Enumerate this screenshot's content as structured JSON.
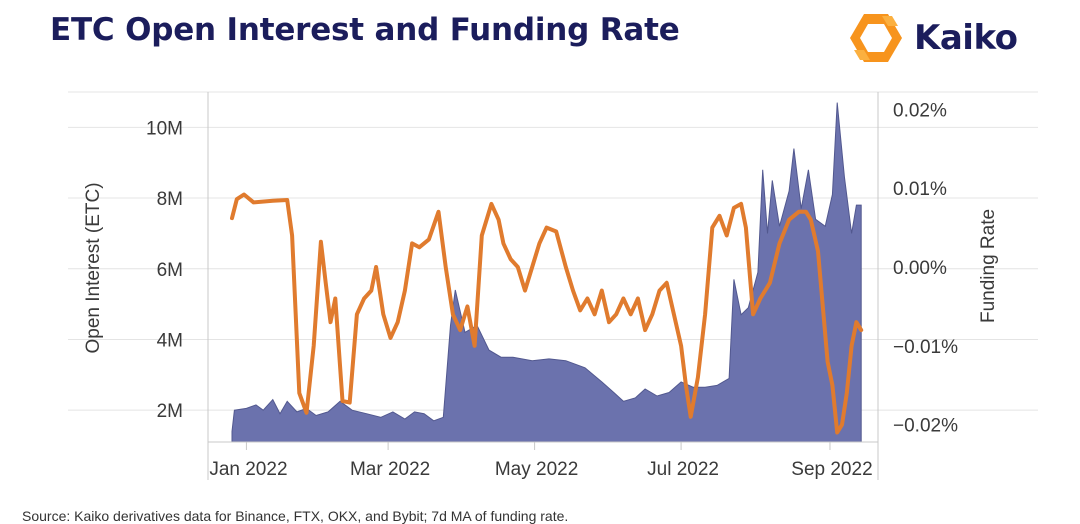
{
  "header": {
    "title": "ETC Open Interest and Funding Rate",
    "logo_text": "Kaiko"
  },
  "footer": {
    "source": "Source: Kaiko derivatives data for Binance, FTX, OKX, and Bybit; 7d MA of funding rate."
  },
  "colors": {
    "area_fill": "#6b72ad",
    "area_stroke": "#52588f",
    "line": "#e07b2e",
    "title": "#1b1d5c",
    "logo_orange": "#f7941d"
  },
  "chart_data": {
    "type": "area+line",
    "title": "ETC Open Interest and Funding Rate",
    "ylabel_left": "Open Interest (ETC)",
    "ylabel_right": "Funding Rate",
    "x_ticks": [
      {
        "date": "2022-01-01",
        "label": "Jan 2022"
      },
      {
        "date": "2022-03-01",
        "label": "Mar 2022"
      },
      {
        "date": "2022-05-01",
        "label": "May 2022"
      },
      {
        "date": "2022-07-01",
        "label": "Jul 2022"
      },
      {
        "date": "2022-09-01",
        "label": "Sep 2022"
      }
    ],
    "xlim": [
      "2021-12-16",
      "2022-09-21"
    ],
    "y_left": {
      "ticks": [
        2000000,
        4000000,
        6000000,
        8000000,
        10000000
      ],
      "labels": [
        "2M",
        "4M",
        "6M",
        "8M",
        "10M"
      ],
      "range": [
        1100000,
        11000000
      ]
    },
    "y_right": {
      "ticks": [
        -0.02,
        -0.01,
        0.0,
        0.01,
        0.02
      ],
      "labels": [
        "−0.02%",
        "−0.01%",
        "0.00%",
        "0.01%",
        "0.02%"
      ],
      "range": [
        -0.0222,
        0.0222
      ]
    },
    "grid": true,
    "legend": "none",
    "series": [
      {
        "kind": "area",
        "axis": "left",
        "points": [
          [
            "2021-12-26",
            1400000
          ],
          [
            "2021-12-27",
            2000000
          ],
          [
            "2022-01-01",
            2050000
          ],
          [
            "2022-01-05",
            2150000
          ],
          [
            "2022-01-08",
            2000000
          ],
          [
            "2022-01-12",
            2300000
          ],
          [
            "2022-01-15",
            1900000
          ],
          [
            "2022-01-18",
            2250000
          ],
          [
            "2022-01-22",
            1950000
          ],
          [
            "2022-01-26",
            2050000
          ],
          [
            "2022-01-30",
            1850000
          ],
          [
            "2022-02-04",
            1950000
          ],
          [
            "2022-02-09",
            2250000
          ],
          [
            "2022-02-14",
            2000000
          ],
          [
            "2022-02-20",
            1900000
          ],
          [
            "2022-02-26",
            1800000
          ],
          [
            "2022-03-03",
            1950000
          ],
          [
            "2022-03-08",
            1750000
          ],
          [
            "2022-03-12",
            1950000
          ],
          [
            "2022-03-16",
            1900000
          ],
          [
            "2022-03-20",
            1700000
          ],
          [
            "2022-03-24",
            1800000
          ],
          [
            "2022-03-27",
            4400000
          ],
          [
            "2022-03-29",
            5400000
          ],
          [
            "2022-04-02",
            4200000
          ],
          [
            "2022-04-07",
            4400000
          ],
          [
            "2022-04-12",
            3700000
          ],
          [
            "2022-04-17",
            3500000
          ],
          [
            "2022-04-22",
            3500000
          ],
          [
            "2022-04-30",
            3400000
          ],
          [
            "2022-05-07",
            3450000
          ],
          [
            "2022-05-14",
            3400000
          ],
          [
            "2022-05-22",
            3200000
          ],
          [
            "2022-05-29",
            2800000
          ],
          [
            "2022-06-03",
            2500000
          ],
          [
            "2022-06-07",
            2250000
          ],
          [
            "2022-06-12",
            2350000
          ],
          [
            "2022-06-16",
            2600000
          ],
          [
            "2022-06-21",
            2400000
          ],
          [
            "2022-06-26",
            2500000
          ],
          [
            "2022-07-01",
            2800000
          ],
          [
            "2022-07-06",
            2650000
          ],
          [
            "2022-07-11",
            2650000
          ],
          [
            "2022-07-16",
            2700000
          ],
          [
            "2022-07-21",
            2900000
          ],
          [
            "2022-07-23",
            5700000
          ],
          [
            "2022-07-26",
            4700000
          ],
          [
            "2022-07-29",
            4900000
          ],
          [
            "2022-08-02",
            5900000
          ],
          [
            "2022-08-04",
            8800000
          ],
          [
            "2022-08-06",
            7000000
          ],
          [
            "2022-08-08",
            8500000
          ],
          [
            "2022-08-11",
            7200000
          ],
          [
            "2022-08-15",
            8200000
          ],
          [
            "2022-08-17",
            9400000
          ],
          [
            "2022-08-20",
            7700000
          ],
          [
            "2022-08-23",
            8800000
          ],
          [
            "2022-08-26",
            7400000
          ],
          [
            "2022-08-30",
            7200000
          ],
          [
            "2022-09-02",
            8100000
          ],
          [
            "2022-09-04",
            10700000
          ],
          [
            "2022-09-07",
            8600000
          ],
          [
            "2022-09-10",
            7000000
          ],
          [
            "2022-09-12",
            7800000
          ],
          [
            "2022-09-14",
            7800000
          ]
        ]
      },
      {
        "kind": "line",
        "axis": "right",
        "points": [
          [
            "2021-12-26",
            0.0062
          ],
          [
            "2021-12-28",
            0.0086
          ],
          [
            "2021-12-31",
            0.0092
          ],
          [
            "2022-01-04",
            0.0082
          ],
          [
            "2022-01-12",
            0.0084
          ],
          [
            "2022-01-18",
            0.0085
          ],
          [
            "2022-01-20",
            0.004
          ],
          [
            "2022-01-23",
            -0.016
          ],
          [
            "2022-01-26",
            -0.0185
          ],
          [
            "2022-01-29",
            -0.01
          ],
          [
            "2022-02-01",
            0.0032
          ],
          [
            "2022-02-03",
            -0.002
          ],
          [
            "2022-02-05",
            -0.007
          ],
          [
            "2022-02-07",
            -0.004
          ],
          [
            "2022-02-10",
            -0.017
          ],
          [
            "2022-02-13",
            -0.0172
          ],
          [
            "2022-02-16",
            -0.006
          ],
          [
            "2022-02-19",
            -0.004
          ],
          [
            "2022-02-22",
            -0.003
          ],
          [
            "2022-02-24",
            0.0
          ],
          [
            "2022-02-27",
            -0.006
          ],
          [
            "2022-03-02",
            -0.009
          ],
          [
            "2022-03-05",
            -0.007
          ],
          [
            "2022-03-08",
            -0.003
          ],
          [
            "2022-03-11",
            0.003
          ],
          [
            "2022-03-14",
            0.0025
          ],
          [
            "2022-03-18",
            0.0035
          ],
          [
            "2022-03-22",
            0.007
          ],
          [
            "2022-03-25",
            0.0
          ],
          [
            "2022-03-28",
            -0.006
          ],
          [
            "2022-03-31",
            -0.008
          ],
          [
            "2022-04-03",
            -0.005
          ],
          [
            "2022-04-06",
            -0.01
          ],
          [
            "2022-04-09",
            0.004
          ],
          [
            "2022-04-13",
            0.008
          ],
          [
            "2022-04-16",
            0.006
          ],
          [
            "2022-04-18",
            0.003
          ],
          [
            "2022-04-21",
            0.001
          ],
          [
            "2022-04-24",
            0.0
          ],
          [
            "2022-04-27",
            -0.003
          ],
          [
            "2022-04-30",
            0.0
          ],
          [
            "2022-05-03",
            0.003
          ],
          [
            "2022-05-06",
            0.005
          ],
          [
            "2022-05-10",
            0.0045
          ],
          [
            "2022-05-14",
            0.0
          ],
          [
            "2022-05-17",
            -0.003
          ],
          [
            "2022-05-20",
            -0.0055
          ],
          [
            "2022-05-23",
            -0.004
          ],
          [
            "2022-05-26",
            -0.006
          ],
          [
            "2022-05-29",
            -0.003
          ],
          [
            "2022-06-01",
            -0.007
          ],
          [
            "2022-06-04",
            -0.006
          ],
          [
            "2022-06-07",
            -0.004
          ],
          [
            "2022-06-10",
            -0.006
          ],
          [
            "2022-06-13",
            -0.004
          ],
          [
            "2022-06-16",
            -0.008
          ],
          [
            "2022-06-19",
            -0.006
          ],
          [
            "2022-06-22",
            -0.003
          ],
          [
            "2022-06-25",
            -0.002
          ],
          [
            "2022-06-28",
            -0.006
          ],
          [
            "2022-07-01",
            -0.01
          ],
          [
            "2022-07-03",
            -0.015
          ],
          [
            "2022-07-05",
            -0.019
          ],
          [
            "2022-07-08",
            -0.014
          ],
          [
            "2022-07-11",
            -0.006
          ],
          [
            "2022-07-14",
            0.005
          ],
          [
            "2022-07-17",
            0.0065
          ],
          [
            "2022-07-20",
            0.004
          ],
          [
            "2022-07-23",
            0.0075
          ],
          [
            "2022-07-26",
            0.008
          ],
          [
            "2022-07-28",
            0.005
          ],
          [
            "2022-07-31",
            -0.006
          ],
          [
            "2022-08-03",
            -0.004
          ],
          [
            "2022-08-07",
            -0.002
          ],
          [
            "2022-08-11",
            0.003
          ],
          [
            "2022-08-15",
            0.006
          ],
          [
            "2022-08-19",
            0.007
          ],
          [
            "2022-08-22",
            0.007
          ],
          [
            "2022-08-24",
            0.006
          ],
          [
            "2022-08-27",
            0.002
          ],
          [
            "2022-08-29",
            -0.005
          ],
          [
            "2022-08-31",
            -0.012
          ],
          [
            "2022-09-02",
            -0.015
          ],
          [
            "2022-09-04",
            -0.021
          ],
          [
            "2022-09-06",
            -0.02
          ],
          [
            "2022-09-08",
            -0.016
          ],
          [
            "2022-09-10",
            -0.01
          ],
          [
            "2022-09-12",
            -0.007
          ],
          [
            "2022-09-14",
            -0.008
          ]
        ]
      }
    ]
  }
}
